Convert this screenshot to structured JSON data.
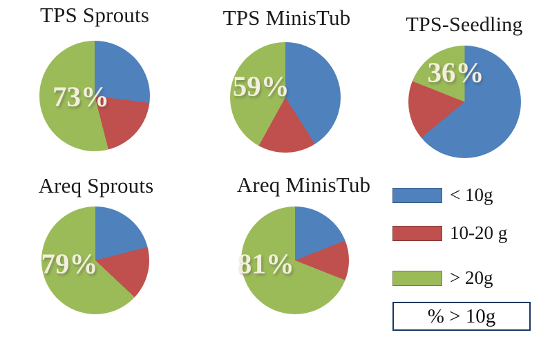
{
  "palette": {
    "blue": "#4F81BD",
    "red": "#C0504D",
    "green": "#9BBB59",
    "pct_text": "#F3EFDC",
    "title_text": "#1B1B1B",
    "legend_box_border": "#17375E"
  },
  "legend": {
    "items": [
      {
        "label": "< 10g",
        "color": "blue"
      },
      {
        "label": "10-20 g",
        "color": "red"
      },
      {
        "label": "> 20g",
        "color": "green"
      }
    ],
    "box_label": "% > 10g"
  },
  "chart_data": [
    {
      "type": "pie",
      "title": "TPS Sprouts",
      "categories": [
        "< 10g",
        "10-20 g",
        "> 20g"
      ],
      "values": [
        27,
        19,
        54
      ],
      "pct_label": "73%",
      "start": "top",
      "direction": "clockwise"
    },
    {
      "type": "pie",
      "title": "TPS MinisTub",
      "categories": [
        "< 10g",
        "10-20 g",
        "> 20g"
      ],
      "values": [
        41,
        17,
        42
      ],
      "pct_label": "59%",
      "start": "top",
      "direction": "clockwise"
    },
    {
      "type": "pie",
      "title": "TPS-Seedling",
      "categories": [
        "< 10g",
        "10-20 g",
        "> 20g"
      ],
      "values": [
        64,
        17,
        19
      ],
      "pct_label": "36%",
      "start": "top",
      "direction": "clockwise"
    },
    {
      "type": "pie",
      "title": "Areq Sprouts",
      "categories": [
        "< 10g",
        "10-20 g",
        "> 20g"
      ],
      "values": [
        21,
        16,
        63
      ],
      "pct_label": "79%",
      "start": "top",
      "direction": "clockwise"
    },
    {
      "type": "pie",
      "title": "Areq MinisTub",
      "categories": [
        "< 10g",
        "10-20 g",
        "> 20g"
      ],
      "values": [
        19,
        12,
        69
      ],
      "pct_label": "81%",
      "start": "top",
      "direction": "clockwise"
    }
  ]
}
